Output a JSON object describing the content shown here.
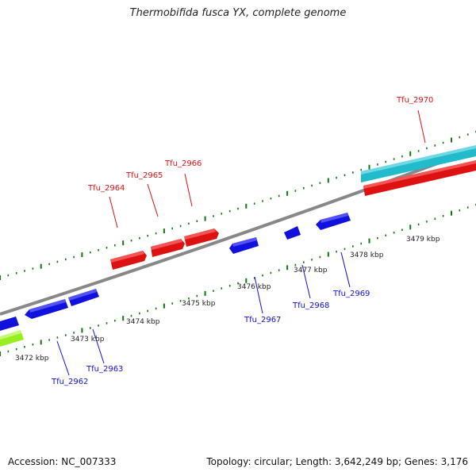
{
  "title": "Thermobifida fusca YX, complete genome",
  "footer": {
    "accession": "Accession: NC_007333",
    "summary": "Topology: circular; Length: 3,642,249 bp; Genes: 3,176"
  },
  "colors": {
    "forward_strand": "#dd1111",
    "reverse_strand": "#1111dd",
    "rna": "#22bbcc",
    "other": "#99ee22",
    "tick": "#117711",
    "backbone": "#888888"
  },
  "genes": [
    {
      "label": "Tfu_2964",
      "strand": "+"
    },
    {
      "label": "Tfu_2965",
      "strand": "+"
    },
    {
      "label": "Tfu_2966",
      "strand": "+"
    },
    {
      "label": "Tfu_2970",
      "strand": "+"
    },
    {
      "label": "Tfu_2962",
      "strand": "-"
    },
    {
      "label": "Tfu_2963",
      "strand": "-"
    },
    {
      "label": "Tfu_2967",
      "strand": "-"
    },
    {
      "label": "Tfu_2968",
      "strand": "-"
    },
    {
      "label": "Tfu_2969",
      "strand": "-"
    }
  ],
  "scale_labels": [
    "3472 kbp",
    "3473 kbp",
    "3474 kbp",
    "3475 kbp",
    "3476 kbp",
    "3477 kbp",
    "3478 kbp",
    "3479 kbp"
  ]
}
